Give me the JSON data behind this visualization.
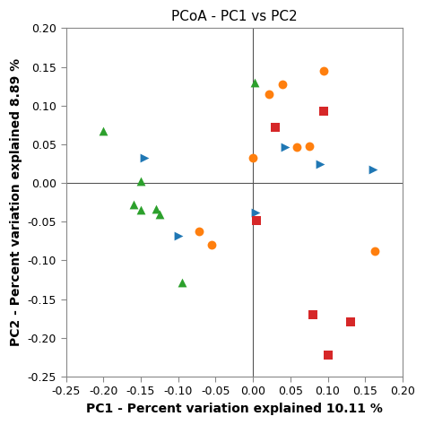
{
  "title": "PCoA - PC1 vs PC2",
  "xlabel": "PC1 - Percent variation explained 10.11 %",
  "ylabel": "PC2 - Percent variation explained 8.89 %",
  "xlim": [
    -0.25,
    0.2
  ],
  "ylim": [
    -0.25,
    0.2
  ],
  "xticks": [
    -0.25,
    -0.2,
    -0.15,
    -0.1,
    -0.05,
    0.0,
    0.05,
    0.1,
    0.15,
    0.2
  ],
  "yticks": [
    -0.25,
    -0.2,
    -0.15,
    -0.1,
    -0.05,
    0.0,
    0.05,
    0.1,
    0.15,
    0.2
  ],
  "green_triangles": {
    "x": [
      -0.2,
      -0.16,
      -0.15,
      -0.15,
      -0.13,
      -0.125,
      -0.095,
      0.002
    ],
    "y": [
      0.067,
      -0.028,
      -0.035,
      0.002,
      -0.033,
      -0.04,
      -0.128,
      0.13
    ],
    "color": "#2ca02c",
    "marker": "^",
    "size": 50
  },
  "blue_triangles": {
    "x": [
      -0.145,
      -0.1,
      0.003,
      0.043,
      0.09,
      0.16
    ],
    "y": [
      0.033,
      -0.068,
      -0.038,
      0.047,
      0.025,
      0.017
    ],
    "color": "#1f77b4",
    "marker": ">",
    "size": 50
  },
  "orange_circles": {
    "x": [
      -0.072,
      -0.055,
      0.0,
      0.022,
      0.04,
      0.058,
      0.075,
      0.095,
      0.163
    ],
    "y": [
      -0.062,
      -0.08,
      0.032,
      0.115,
      0.128,
      0.047,
      0.048,
      0.145,
      -0.088
    ],
    "color": "#ff7f0e",
    "marker": "o",
    "size": 50
  },
  "red_squares": {
    "x": [
      0.005,
      0.03,
      0.08,
      0.095,
      0.13,
      0.1
    ],
    "y": [
      -0.048,
      0.072,
      -0.17,
      0.093,
      -0.18,
      -0.222
    ],
    "color": "#d62728",
    "marker": "s",
    "size": 50
  },
  "axline_color": "#555555",
  "background_color": "#ffffff",
  "tick_fontsize": 9,
  "label_fontsize": 10,
  "title_fontsize": 11
}
